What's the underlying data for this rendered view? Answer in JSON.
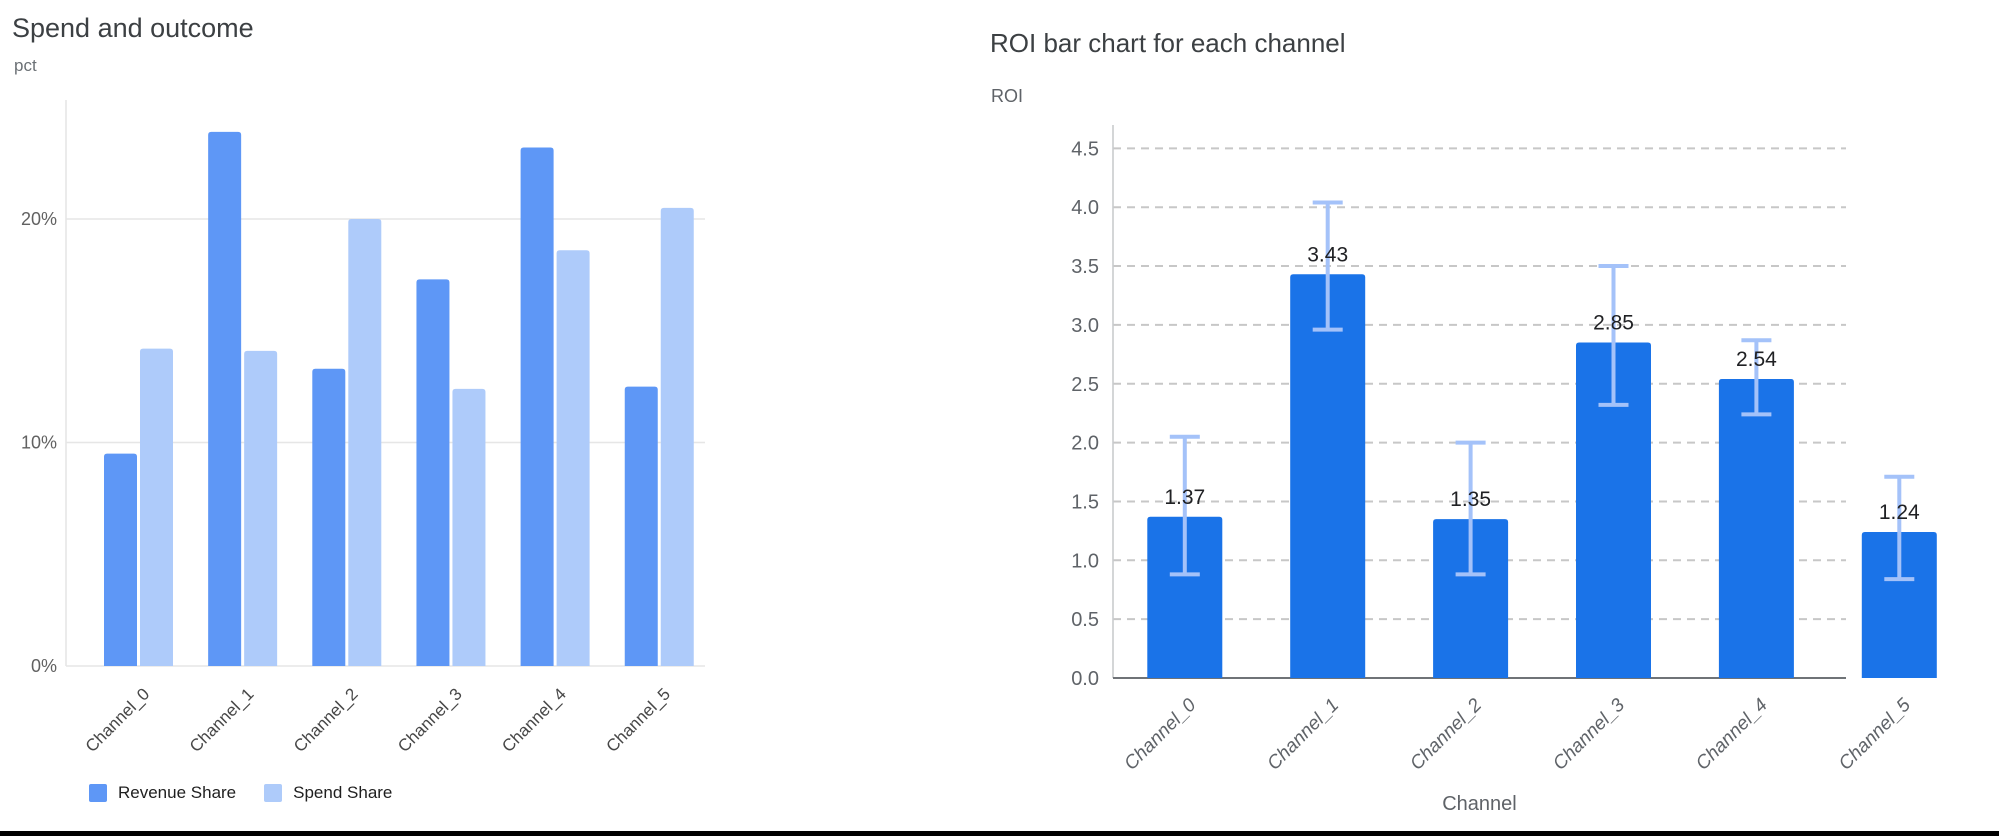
{
  "chart_data": [
    {
      "id": "spend-and-outcome",
      "type": "bar",
      "title": "Spend and outcome",
      "ylabel": "pct",
      "xlabel": "",
      "categories": [
        "Channel_0",
        "Channel_1",
        "Channel_2",
        "Channel_3",
        "Channel_4",
        "Channel_5"
      ],
      "series": [
        {
          "name": "Revenue Share",
          "color": "#5e97f6",
          "values": [
            9.5,
            23.9,
            13.3,
            17.3,
            23.2,
            12.5
          ]
        },
        {
          "name": "Spend Share",
          "color": "#aecbfa",
          "values": [
            14.2,
            14.1,
            20.0,
            12.4,
            18.6,
            20.5
          ]
        }
      ],
      "yticks": [
        {
          "value": 0,
          "label": "0%"
        },
        {
          "value": 10,
          "label": "10%"
        },
        {
          "value": 20,
          "label": "20%"
        }
      ],
      "ylim": [
        0,
        25.3
      ],
      "grid": "solid",
      "legend_position": "bottom-left",
      "units": "percent"
    },
    {
      "id": "roi-per-channel",
      "type": "bar",
      "title": "ROI bar chart for each channel",
      "ylabel": "ROI",
      "xlabel": "Channel",
      "categories": [
        "Channel_0",
        "Channel_1",
        "Channel_2",
        "Channel_3",
        "Channel_4",
        "Channel_5"
      ],
      "values": [
        1.37,
        3.43,
        1.35,
        2.85,
        2.54,
        1.24
      ],
      "data_labels": [
        "1.37",
        "3.43",
        "1.35",
        "2.85",
        "2.54",
        "1.24"
      ],
      "error_bars_low": [
        0.88,
        2.96,
        0.88,
        2.32,
        2.24,
        0.84
      ],
      "error_bars_high": [
        2.05,
        4.04,
        2.0,
        3.5,
        2.87,
        1.71
      ],
      "bar_color": "#1a73e8",
      "error_bar_color": "#a4c2f9",
      "ylim": [
        0,
        4.5
      ],
      "ytick_step": 0.5,
      "ytick_labels": [
        "0.0",
        "0.5",
        "1.0",
        "1.5",
        "2.0",
        "2.5",
        "3.0",
        "3.5",
        "4.0",
        "4.5"
      ],
      "grid": "dashed",
      "legend_position": "none"
    }
  ],
  "page": {
    "background": "#ffffff",
    "bottom_rule_color": "#000000",
    "title_color": "#3c4043",
    "tick_label_color_left": "#616161",
    "tick_label_color_right": "#5f6368",
    "category_label_color_left": "#474747",
    "category_label_color_right": "#5f6368",
    "gridline_color_left": "#e6e6e6",
    "gridline_color_right": "#c7c7c7",
    "value_label_color": "#202124"
  }
}
